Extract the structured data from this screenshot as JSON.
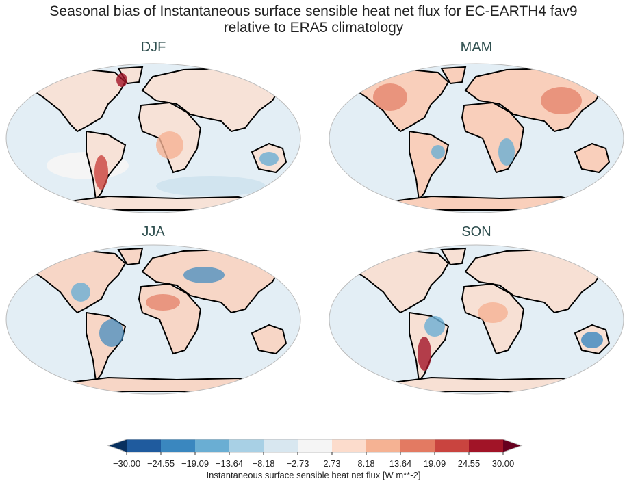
{
  "title_line1": "Seasonal bias of Instantaneous surface sensible heat net flux for EC-EARTH4 fav9",
  "title_line2": "relative to ERA5 climatology",
  "panels": [
    {
      "label": "DJF"
    },
    {
      "label": "MAM"
    },
    {
      "label": "JJA"
    },
    {
      "label": "SON"
    }
  ],
  "colorbar": {
    "label": "Instantaneous surface sensible heat net flux [W m**-2]",
    "ticks": [
      "−30.00",
      "−24.55",
      "−19.09",
      "−13.64",
      "−8.18",
      "−2.73",
      "2.73",
      "8.18",
      "13.64",
      "19.09",
      "24.55",
      "30.00"
    ],
    "colors": [
      "#1f5b9e",
      "#3a87bf",
      "#6aaed3",
      "#a8d0e5",
      "#d8e7f0",
      "#f5f5f5",
      "#fcdccc",
      "#f5b293",
      "#e37a62",
      "#c9443f",
      "#a11427"
    ],
    "extend_low_color": "#08305f",
    "extend_high_color": "#67001f"
  }
}
